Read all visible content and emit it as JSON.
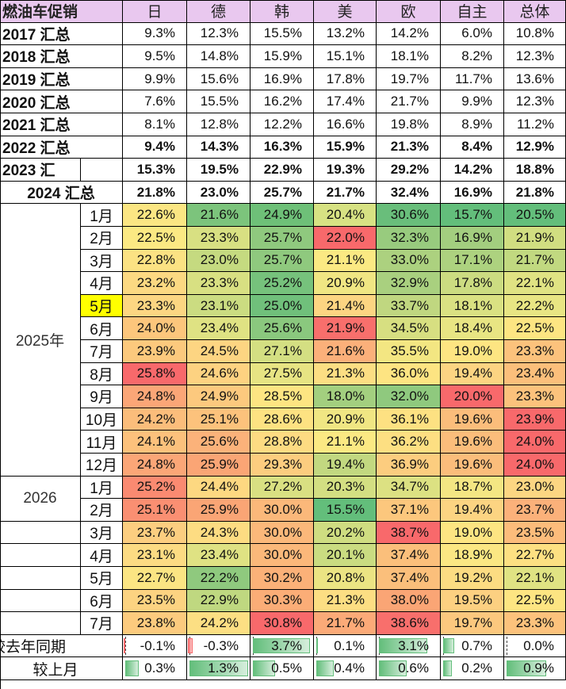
{
  "table": {
    "corner": "燃油车促销",
    "columns": [
      "日",
      "德",
      "韩",
      "美",
      "欧",
      "自主",
      "总体"
    ],
    "annual": [
      {
        "label": "2017 汇总",
        "values": [
          "9.3%",
          "12.3%",
          "15.5%",
          "13.2%",
          "14.2%",
          "6.0%",
          "10.8%"
        ]
      },
      {
        "label": "2018 汇总",
        "values": [
          "9.5%",
          "14.8%",
          "15.9%",
          "15.1%",
          "18.1%",
          "8.2%",
          "12.3%"
        ]
      },
      {
        "label": "2019 汇总",
        "values": [
          "9.9%",
          "15.6%",
          "16.9%",
          "17.8%",
          "19.7%",
          "11.7%",
          "13.6%"
        ]
      },
      {
        "label": "2020 汇总",
        "values": [
          "7.6%",
          "15.5%",
          "16.2%",
          "17.4%",
          "21.7%",
          "9.9%",
          "12.3%"
        ]
      },
      {
        "label": "2021 汇总",
        "values": [
          "8.1%",
          "12.8%",
          "12.2%",
          "16.6%",
          "19.8%",
          "8.9%",
          "11.2%"
        ]
      },
      {
        "label": "2022 汇总",
        "values": [
          "9.4%",
          "14.3%",
          "16.3%",
          "15.9%",
          "21.3%",
          "8.4%",
          "12.9%"
        ]
      },
      {
        "label": "2023 汇",
        "values": [
          "15.3%",
          "19.5%",
          "22.9%",
          "19.3%",
          "29.2%",
          "14.2%",
          "18.8%"
        ]
      },
      {
        "label": "2024 汇总",
        "values": [
          "21.8%",
          "23.0%",
          "25.7%",
          "21.7%",
          "32.4%",
          "16.9%",
          "21.8%"
        ]
      }
    ],
    "year_2025": {
      "label": "2025年",
      "rows": [
        {
          "month": "1月",
          "values": [
            "22.6%",
            "21.6%",
            "24.9%",
            "20.4%",
            "30.6%",
            "15.7%",
            "20.5%"
          ],
          "colors": [
            "#fbe683",
            "#7cc47c",
            "#6ec078",
            "#d7e283",
            "#69be7b",
            "#63be7b",
            "#63be7b"
          ]
        },
        {
          "month": "2月",
          "values": [
            "22.5%",
            "23.3%",
            "25.7%",
            "22.0%",
            "32.3%",
            "16.9%",
            "21.9%"
          ],
          "colors": [
            "#fbe983",
            "#d8e082",
            "#8fc97e",
            "#f8696b",
            "#98cb7e",
            "#a3ce7f",
            "#d1de81"
          ]
        },
        {
          "month": "3月",
          "values": [
            "22.8%",
            "23.0%",
            "25.7%",
            "21.1%",
            "33.0%",
            "17.1%",
            "21.7%"
          ],
          "colors": [
            "#fbe283",
            "#c5da80",
            "#8fc97e",
            "#fbe983",
            "#acd17f",
            "#add27f",
            "#c1d980"
          ]
        },
        {
          "month": "4月",
          "values": [
            "23.2%",
            "23.3%",
            "25.2%",
            "20.9%",
            "32.9%",
            "17.8%",
            "22.1%"
          ],
          "colors": [
            "#fcd982",
            "#d8e082",
            "#76c27c",
            "#f0e683",
            "#a9d07f",
            "#ccdc81",
            "#e0e383"
          ]
        },
        {
          "month": "5月",
          "values": [
            "23.3%",
            "23.1%",
            "25.0%",
            "21.4%",
            "33.7%",
            "18.1%",
            "22.2%"
          ],
          "colors": [
            "#fcd682",
            "#cbdc81",
            "#70c07b",
            "#fcd582",
            "#c0d780",
            "#dae182",
            "#e8e583"
          ]
        },
        {
          "month": "6月",
          "values": [
            "24.0%",
            "23.4%",
            "25.6%",
            "21.9%",
            "34.5%",
            "18.4%",
            "22.5%"
          ],
          "colors": [
            "#fcc67c",
            "#dfe283",
            "#8ac87e",
            "#f86f6c",
            "#d7df81",
            "#e8e583",
            "#fde582"
          ]
        },
        {
          "month": "7月",
          "values": [
            "23.9%",
            "24.5%",
            "27.1%",
            "21.6%",
            "35.5%",
            "19.0%",
            "23.3%"
          ],
          "colors": [
            "#fcc97d",
            "#fdd582",
            "#d4df82",
            "#fbb07a",
            "#f3e682",
            "#fde582",
            "#fcc27c"
          ]
        },
        {
          "month": "8月",
          "values": [
            "25.8%",
            "24.6%",
            "27.5%",
            "21.3%",
            "36.0%",
            "19.4%",
            "23.4%"
          ],
          "colors": [
            "#f8696b",
            "#fdd281",
            "#e7e483",
            "#fcde83",
            "#fde482",
            "#fcd482",
            "#fbbf7b"
          ]
        },
        {
          "month": "9月",
          "values": [
            "24.8%",
            "24.9%",
            "28.5%",
            "18.0%",
            "32.0%",
            "20.0%",
            "23.3%"
          ],
          "colors": [
            "#fba677",
            "#fcc97e",
            "#fde582",
            "#a3cf7f",
            "#8fc97e",
            "#f8696b",
            "#fcc27c"
          ]
        },
        {
          "month": "10月",
          "values": [
            "24.2%",
            "25.1%",
            "28.6%",
            "20.9%",
            "36.1%",
            "19.6%",
            "23.9%"
          ],
          "colors": [
            "#fbbd7b",
            "#fcc27c",
            "#fde282",
            "#f0e683",
            "#fde182",
            "#fbbd7b",
            "#f8696b"
          ]
        },
        {
          "month": "11月",
          "values": [
            "24.1%",
            "25.6%",
            "28.8%",
            "21.1%",
            "36.2%",
            "19.6%",
            "24.0%"
          ],
          "colors": [
            "#fcc17c",
            "#fbb27a",
            "#fddb82",
            "#fbe983",
            "#fddf82",
            "#fbbd7b",
            "#f8696b"
          ]
        },
        {
          "month": "12月",
          "values": [
            "24.8%",
            "25.9%",
            "29.3%",
            "19.4%",
            "36.9%",
            "19.6%",
            "24.0%"
          ],
          "colors": [
            "#fba677",
            "#faa575",
            "#fccd7f",
            "#c2d880",
            "#fccd7f",
            "#fbbd7b",
            "#f8696b"
          ]
        }
      ]
    },
    "year_2026": {
      "label": "2026",
      "rows": [
        {
          "month": "1月",
          "values": [
            "25.2%",
            "24.4%",
            "27.2%",
            "20.3%",
            "34.7%",
            "18.7%",
            "23.0%"
          ],
          "colors": [
            "#fa8a71",
            "#fdd881",
            "#d9e082",
            "#d3df82",
            "#dce182",
            "#f4e683",
            "#fcd682"
          ]
        },
        {
          "month": "2月",
          "values": [
            "25.1%",
            "25.9%",
            "30.0%",
            "15.5%",
            "37.1%",
            "19.4%",
            "23.7%"
          ],
          "colors": [
            "#fa8f72",
            "#faa575",
            "#fbb87a",
            "#63be7b",
            "#fcc77d",
            "#fcd482",
            "#fbb17a"
          ]
        },
        {
          "month": "3月",
          "values": [
            "23.7%",
            "24.3%",
            "30.0%",
            "20.2%",
            "38.7%",
            "19.0%",
            "23.5%"
          ],
          "colors": [
            "#fcce80",
            "#fddc82",
            "#fbb87a",
            "#cfdd81",
            "#f8696b",
            "#fde582",
            "#fcbc7b"
          ]
        },
        {
          "month": "4月",
          "values": [
            "23.1%",
            "23.4%",
            "30.0%",
            "20.1%",
            "37.4%",
            "18.9%",
            "22.7%"
          ],
          "colors": [
            "#fcdb83",
            "#dfe283",
            "#fbb87a",
            "#cadc81",
            "#fbbf7b",
            "#fbe783",
            "#fde082"
          ]
        },
        {
          "month": "5月",
          "values": [
            "22.7%",
            "22.2%",
            "30.2%",
            "20.8%",
            "37.4%",
            "19.2%",
            "22.1%"
          ],
          "colors": [
            "#fbe583",
            "#8fc97e",
            "#fbb178",
            "#ebe483",
            "#fbbf7b",
            "#fcdc82",
            "#e0e383"
          ]
        },
        {
          "month": "6月",
          "values": [
            "23.5%",
            "22.9%",
            "30.3%",
            "21.3%",
            "38.0%",
            "19.5%",
            "22.5%"
          ],
          "colors": [
            "#fcd381",
            "#bfd880",
            "#fbad77",
            "#fcde83",
            "#faa575",
            "#fcd081",
            "#fde582"
          ]
        },
        {
          "month": "7月",
          "values": [
            "23.8%",
            "24.2%",
            "30.8%",
            "21.7%",
            "38.6%",
            "19.7%",
            "23.3%"
          ],
          "colors": [
            "#fccb7e",
            "#fcdf83",
            "#f8696b",
            "#fbaa78",
            "#f86f6c",
            "#fcc87e",
            "#fcc27c"
          ]
        }
      ]
    },
    "yoy": {
      "label": "较去年同期",
      "values": [
        "-0.1%",
        "-0.3%",
        "3.7%",
        "0.1%",
        "3.1%",
        "0.7%",
        "0.0%"
      ],
      "magnitudes": [
        -0.1,
        -0.3,
        3.7,
        0.1,
        3.1,
        0.7,
        0.0
      ]
    },
    "mom": {
      "label": "较上月",
      "values": [
        "0.3%",
        "1.3%",
        "0.5%",
        "0.4%",
        "0.6%",
        "0.2%",
        "0.9%"
      ],
      "magnitudes": [
        0.3,
        1.3,
        0.5,
        0.4,
        0.6,
        0.2,
        0.9
      ]
    },
    "highlight_month_2025": "5月",
    "colors": {
      "header_bg": "#e9c8ef",
      "highlight": "#ffff00",
      "bar_pos": "#63be7b",
      "bar_neg": "#f8696b"
    }
  }
}
